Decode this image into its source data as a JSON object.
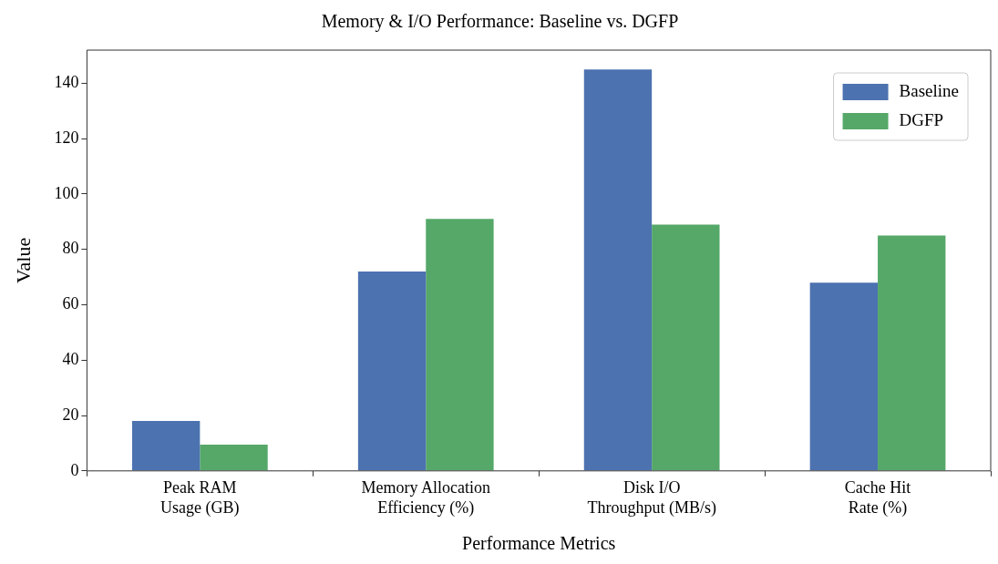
{
  "chart_data": {
    "type": "bar",
    "title": "Memory & I/O Performance: Baseline vs. DGFP",
    "xlabel": "Performance Metrics",
    "ylabel": "Value",
    "categories": [
      "Peak RAM\nUsage (GB)",
      "Memory Allocation\nEfficiency (%)",
      "Disk I/O\nThroughput (MB/s)",
      "Cache Hit\nRate (%)"
    ],
    "series": [
      {
        "name": "Baseline",
        "color": "#4c72b0",
        "values": [
          18,
          72,
          145,
          68
        ]
      },
      {
        "name": "DGFP",
        "color": "#55a868",
        "values": [
          9.5,
          91,
          89,
          85
        ]
      }
    ],
    "ylim": [
      0,
      152
    ],
    "yticks": [
      0,
      20,
      40,
      60,
      80,
      100,
      120,
      140
    ],
    "grid": false,
    "legend": "top right"
  }
}
